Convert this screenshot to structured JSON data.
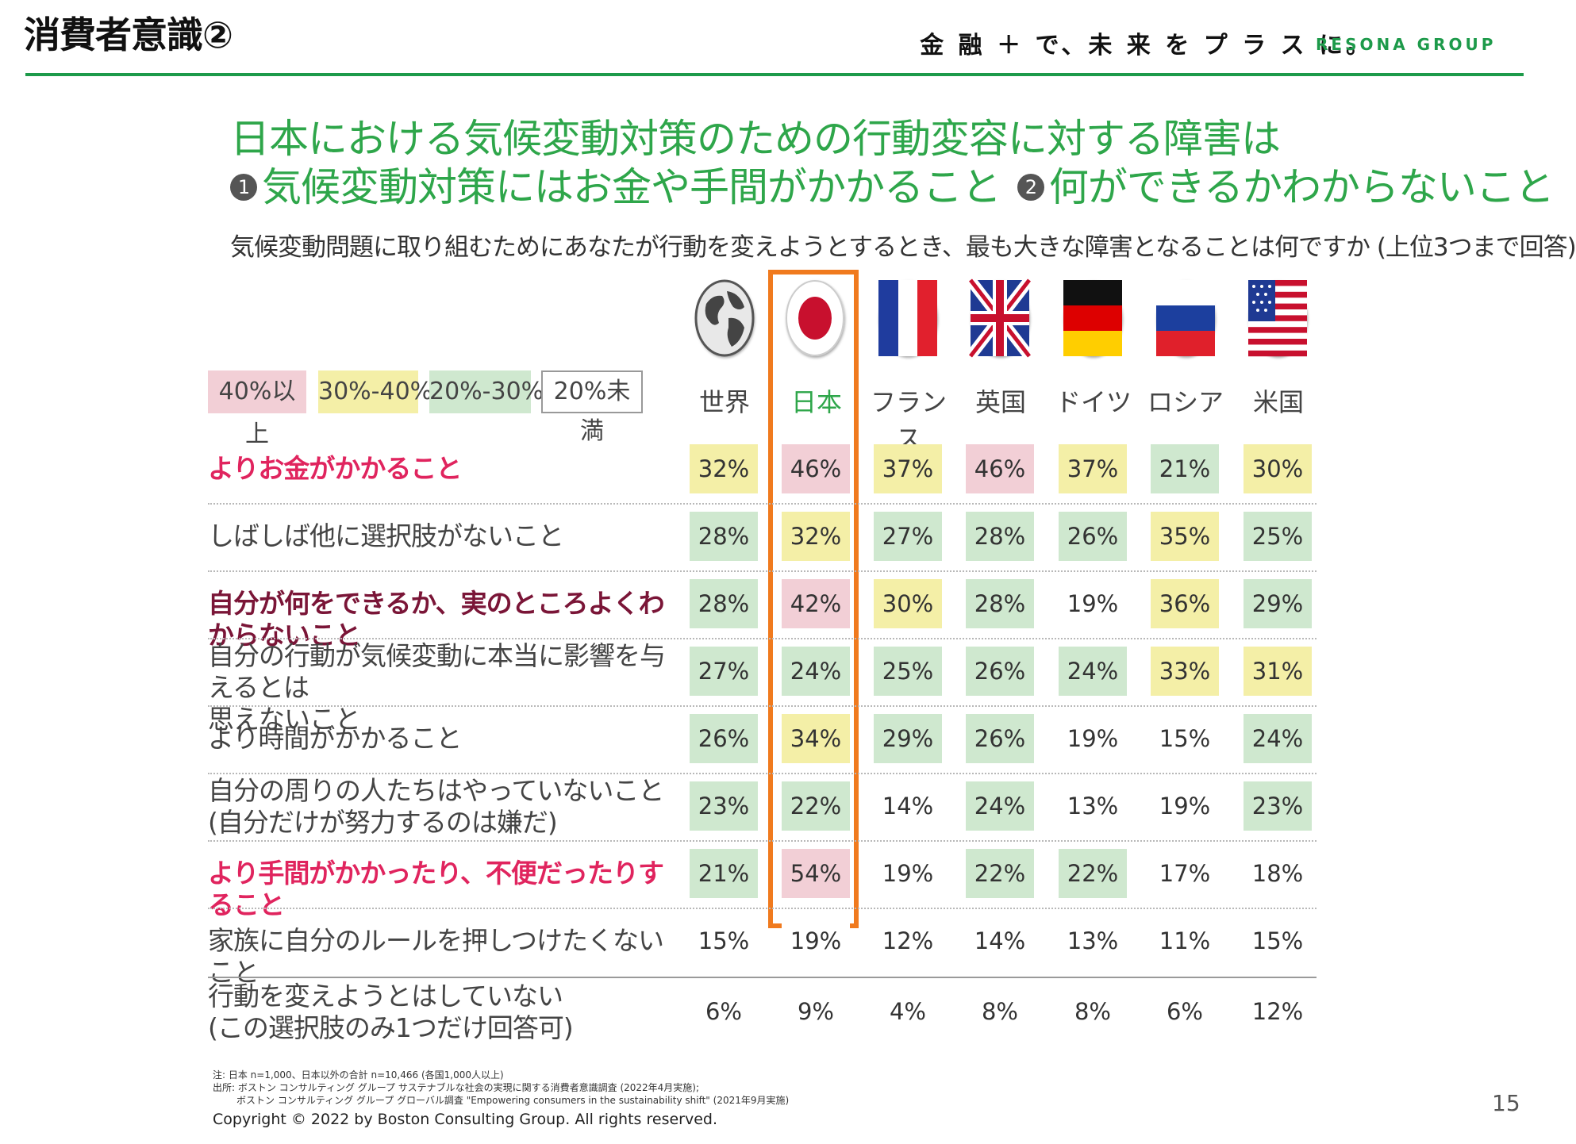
{
  "header": {
    "slide_title": "消費者意識②",
    "tagline": "金 融 ＋ で、未 来 を プ ラ ス に。",
    "brand": "RESONA GROUP"
  },
  "headline": {
    "line1": "日本における気候変動対策のための行動変容に対する障害は",
    "marker1": "1",
    "part1": "気候変動対策にはお金や手間がかかること",
    "marker2": "2",
    "part2": "何ができるかわからないこと"
  },
  "question": "気候変動問題に取り組むためにあなたが行動を変えようとするとき、最も大きな障害となることは何ですか (上位3つまで回答)",
  "legend": [
    "40%以上",
    "30%-40%",
    "20%-30%",
    "20%未満"
  ],
  "colors": {
    "over40": "#f2cfd6",
    "30to40": "#f4efa7",
    "20to30": "#cfe8cf",
    "under20": "#ffffff",
    "highlight_border": "#f07a1e",
    "headline": "#2ea64a",
    "brand_green": "#1d9a4a"
  },
  "countries": [
    {
      "label": "世界",
      "flag": "globe-icon"
    },
    {
      "label": "日本",
      "flag": "japan-flag-icon"
    },
    {
      "label": "フランス",
      "flag": "france-flag-icon"
    },
    {
      "label": "英国",
      "flag": "uk-flag-icon"
    },
    {
      "label": "ドイツ",
      "flag": "germany-flag-icon"
    },
    {
      "label": "ロシア",
      "flag": "russia-flag-icon"
    },
    {
      "label": "米国",
      "flag": "usa-flag-icon"
    }
  ],
  "rows": [
    {
      "label": "よりお金がかかること",
      "style": "pink",
      "values": [
        "32%",
        "46%",
        "37%",
        "46%",
        "37%",
        "21%",
        "30%"
      ]
    },
    {
      "label": "しばしば他に選択肢がないこと",
      "style": "normal",
      "values": [
        "28%",
        "32%",
        "27%",
        "28%",
        "26%",
        "35%",
        "25%"
      ]
    },
    {
      "label": "自分が何をできるか、実のところよくわからないこと",
      "style": "maroon",
      "values": [
        "28%",
        "42%",
        "30%",
        "28%",
        "19%",
        "36%",
        "29%"
      ]
    },
    {
      "label": "自分の行動が気候変動に本当に影響を与えるとは",
      "label2": "思えないこと",
      "style": "normal",
      "values": [
        "27%",
        "24%",
        "25%",
        "26%",
        "24%",
        "33%",
        "31%"
      ]
    },
    {
      "label": "より時間がかかること",
      "style": "normal",
      "values": [
        "26%",
        "34%",
        "29%",
        "26%",
        "19%",
        "15%",
        "24%"
      ]
    },
    {
      "label": "自分の周りの人たちはやっていないこと",
      "label2": "(自分だけが努力するのは嫌だ)",
      "style": "normal",
      "values": [
        "23%",
        "22%",
        "14%",
        "24%",
        "13%",
        "19%",
        "23%"
      ]
    },
    {
      "label": "より手間がかかったり、不便だったりすること",
      "style": "pink",
      "values": [
        "21%",
        "54%",
        "19%",
        "22%",
        "22%",
        "17%",
        "18%"
      ]
    },
    {
      "label": "家族に自分のルールを押しつけたくないこと",
      "style": "normal",
      "values": [
        "15%",
        "19%",
        "12%",
        "14%",
        "13%",
        "11%",
        "15%"
      ]
    },
    {
      "label": "行動を変えようとはしていない",
      "label2": "(この選択肢のみ1つだけ回答可)",
      "style": "normal",
      "values": [
        "6%",
        "9%",
        "4%",
        "8%",
        "8%",
        "6%",
        "12%"
      ]
    }
  ],
  "notes": {
    "line1": "注: 日本 n=1,000、日本以外の合計 n=10,466 (各国1,000人以上)",
    "line2": "出所: ボストン コンサルティング グループ サステナブルな社会の実現に関する消費者意識調査 (2022年4月実施);",
    "line3": "ボストン コンサルティング グループ グローバル調査 \"Empowering consumers in the sustainability shift\" (2021年9月実施)"
  },
  "copyright": "Copyright © 2022 by Boston Consulting Group. All rights reserved.",
  "page_number": "15"
}
